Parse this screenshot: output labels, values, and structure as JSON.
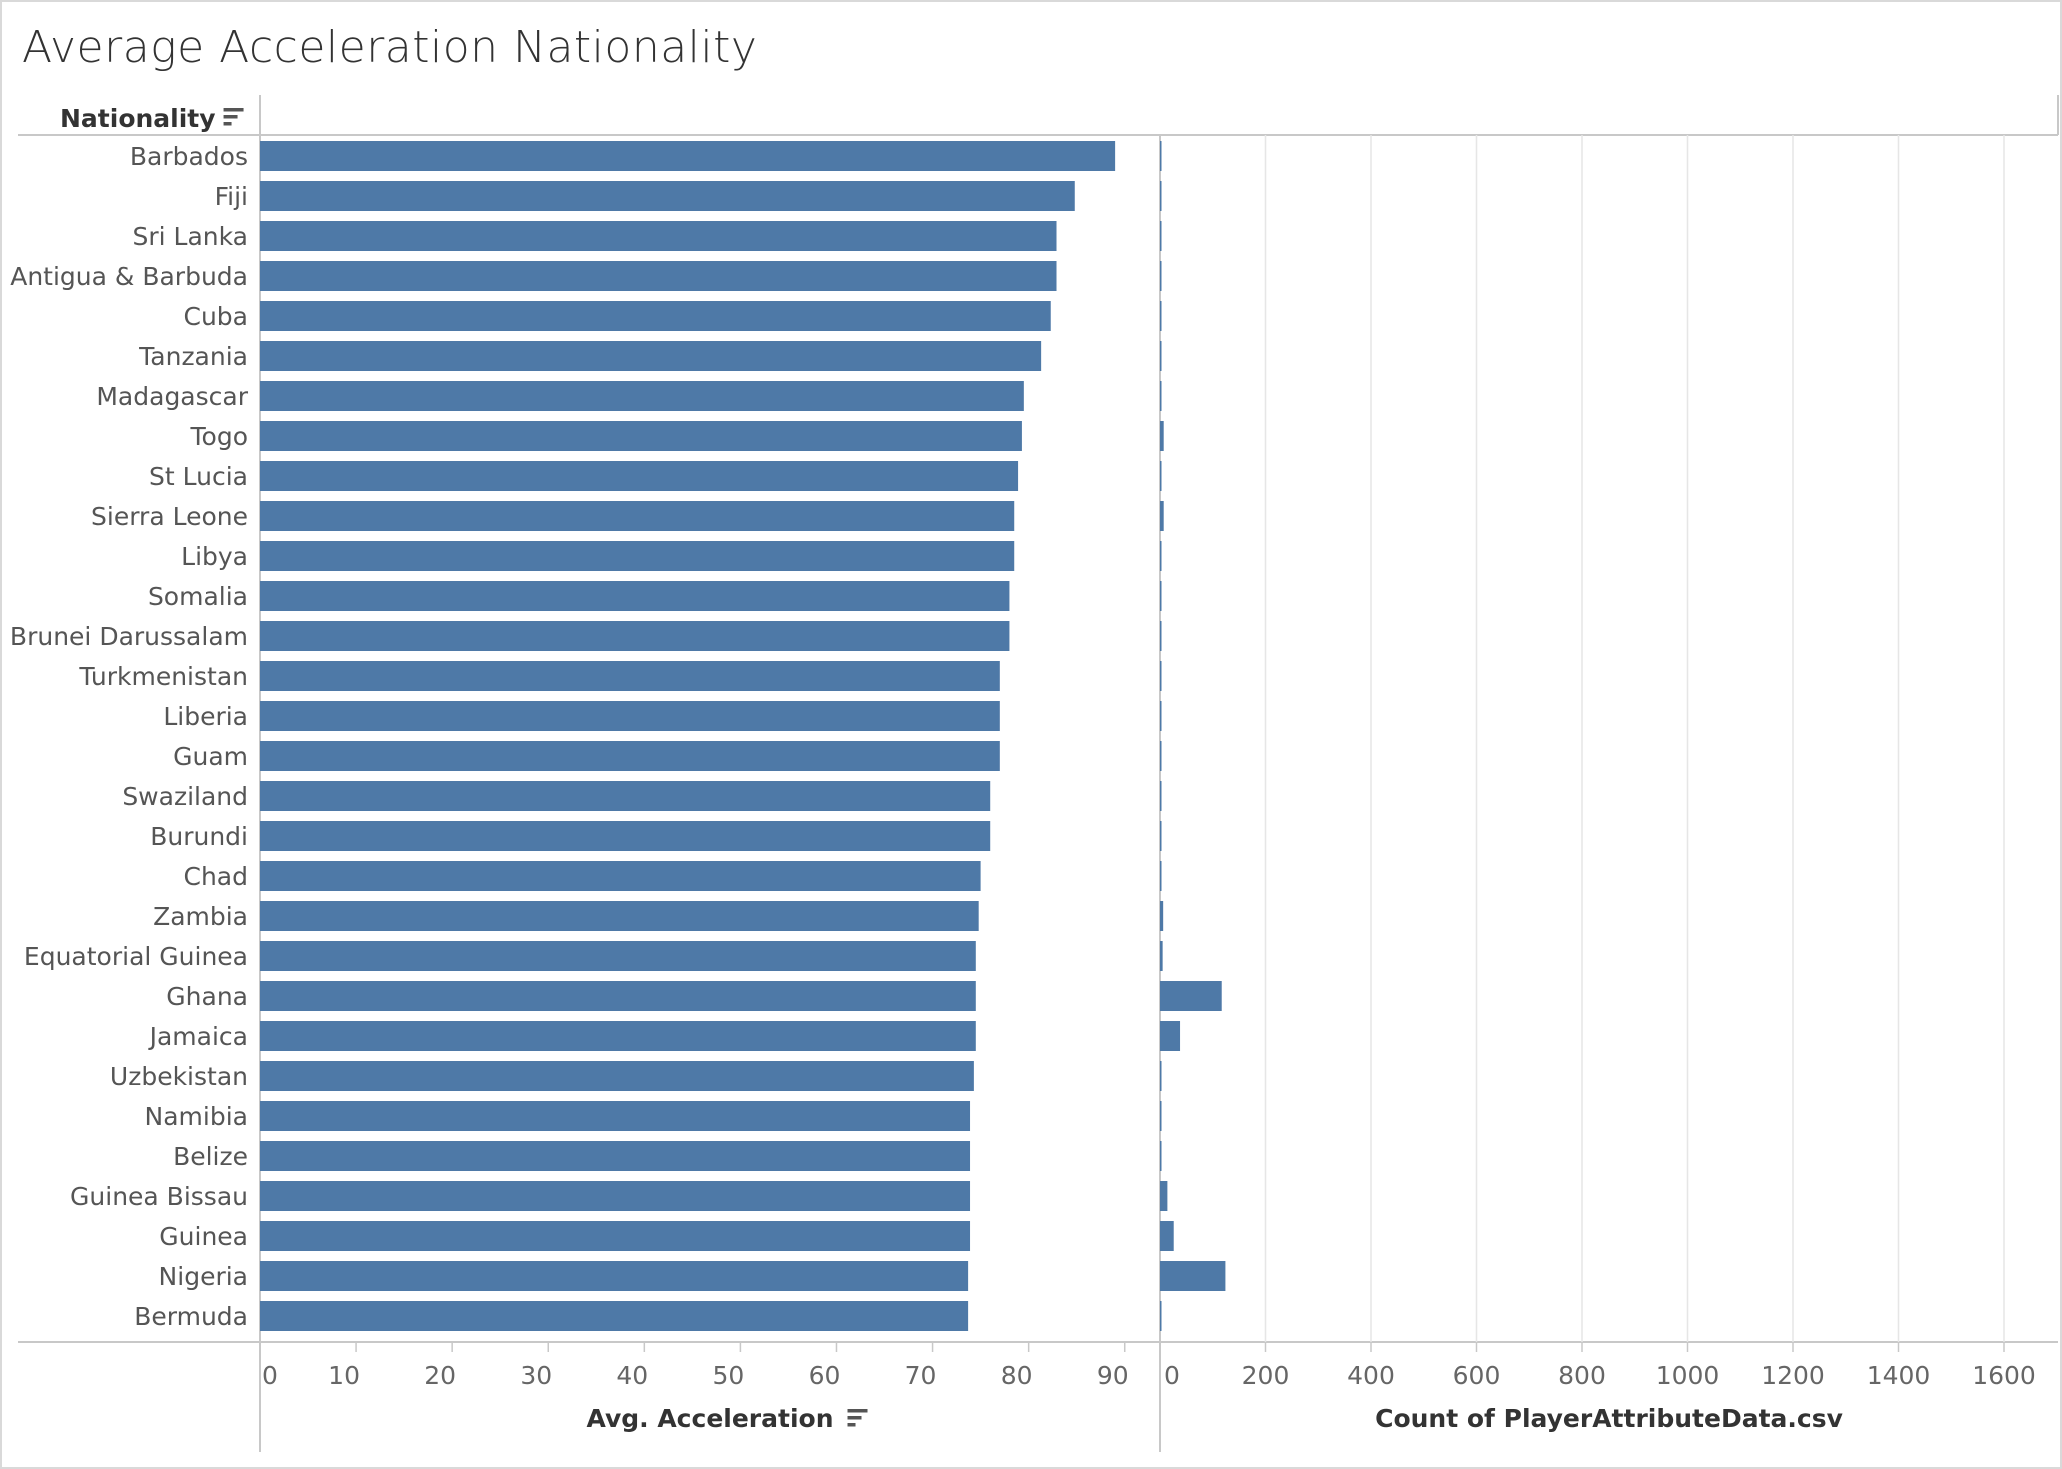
{
  "title": "Average Acceleration Nationality",
  "header": {
    "dimension_label": "Nationality",
    "sort_icon": "sort-descending-icon"
  },
  "colors": {
    "bar": "#4e79a7",
    "grid": "#e6e6e6",
    "axis": "#c8c8c8"
  },
  "chart_data": [
    {
      "type": "bar",
      "orientation": "horizontal",
      "xlabel": "Avg. Acceleration",
      "xlim": [
        0,
        90
      ],
      "ticks": [
        0,
        10,
        20,
        30,
        40,
        50,
        60,
        70,
        80,
        90
      ],
      "grid": false,
      "categories": [
        "Barbados",
        "Fiji",
        "Sri Lanka",
        "Antigua & Barbuda",
        "Cuba",
        "Tanzania",
        "Madagascar",
        "Togo",
        "St Lucia",
        "Sierra Leone",
        "Libya",
        "Somalia",
        "Brunei Darussalam",
        "Turkmenistan",
        "Liberia",
        "Guam",
        "Swaziland",
        "Burundi",
        "Chad",
        "Zambia",
        "Equatorial Guinea",
        "Ghana",
        "Jamaica",
        "Uzbekistan",
        "Namibia",
        "Belize",
        "Guinea Bissau",
        "Guinea",
        "Nigeria",
        "Bermuda"
      ],
      "values": [
        89.0,
        84.8,
        82.9,
        82.9,
        82.3,
        81.3,
        79.5,
        79.3,
        78.9,
        78.5,
        78.5,
        78.0,
        78.0,
        77.0,
        77.0,
        77.0,
        76.0,
        76.0,
        75.0,
        74.8,
        74.5,
        74.5,
        74.5,
        74.3,
        73.9,
        73.9,
        73.9,
        73.9,
        73.7,
        73.7
      ]
    },
    {
      "type": "bar",
      "orientation": "horizontal",
      "xlabel": "Count of PlayerAttributeData.csv",
      "xlim": [
        0,
        1700
      ],
      "ticks": [
        0,
        200,
        400,
        600,
        800,
        1000,
        1200,
        1400,
        1600
      ],
      "grid": true,
      "categories": [
        "Barbados",
        "Fiji",
        "Sri Lanka",
        "Antigua & Barbuda",
        "Cuba",
        "Tanzania",
        "Madagascar",
        "Togo",
        "St Lucia",
        "Sierra Leone",
        "Libya",
        "Somalia",
        "Brunei Darussalam",
        "Turkmenistan",
        "Liberia",
        "Guam",
        "Swaziland",
        "Burundi",
        "Chad",
        "Zambia",
        "Equatorial Guinea",
        "Ghana",
        "Jamaica",
        "Uzbekistan",
        "Namibia",
        "Belize",
        "Guinea Bissau",
        "Guinea",
        "Nigeria",
        "Bermuda"
      ],
      "values": [
        2,
        1,
        2,
        2,
        2,
        2,
        2,
        7,
        1,
        7,
        2,
        2,
        1,
        1,
        1,
        1,
        1,
        1,
        1,
        6,
        5,
        117,
        38,
        1,
        1,
        1,
        14,
        26,
        124,
        1
      ]
    }
  ]
}
